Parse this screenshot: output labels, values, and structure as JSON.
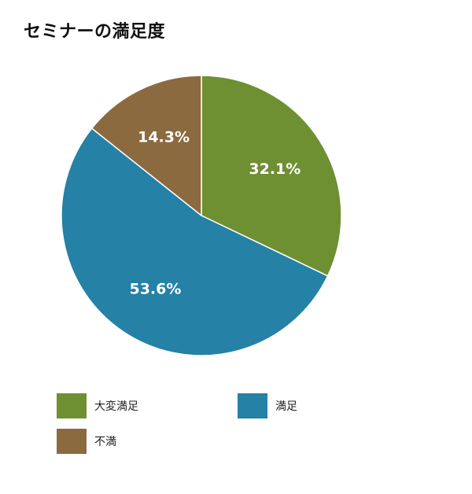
{
  "chart_data": {
    "type": "pie",
    "title": "セミナーの満足度",
    "slices": [
      {
        "label": "大変満足",
        "value": 32.1,
        "value_label": "32.1%",
        "color": "#6f8f33"
      },
      {
        "label": "満足",
        "value": 53.6,
        "value_label": "53.6%",
        "color": "#2581a6"
      },
      {
        "label": "不満",
        "value": 14.3,
        "value_label": "14.3%",
        "color": "#8c6a40"
      }
    ],
    "legend_position": "bottom"
  }
}
